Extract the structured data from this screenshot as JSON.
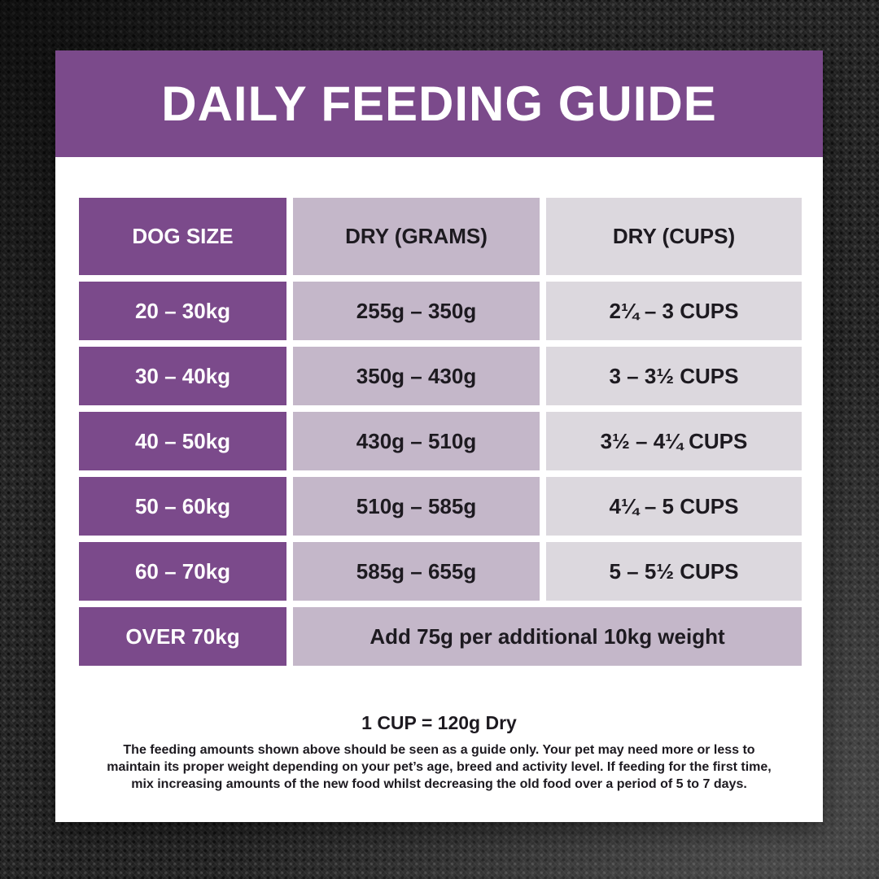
{
  "colors": {
    "purple": "#7b4a8b",
    "lavender_mid": "#c4b7c9",
    "lavender_light": "#dcd8de",
    "text_dark": "#1d1a20"
  },
  "header": {
    "title": "DAILY FEEDING GUIDE"
  },
  "table": {
    "columns": [
      "DOG SIZE",
      "DRY (GRAMS)",
      "DRY (CUPS)"
    ],
    "rows": [
      {
        "size": "20 – 30kg",
        "grams": "255g – 350g",
        "cups": "2¼ – 3 CUPS"
      },
      {
        "size": "30 – 40kg",
        "grams": "350g – 430g",
        "cups": "3 – 3½ CUPS"
      },
      {
        "size": "40 – 50kg",
        "grams": "430g – 510g",
        "cups": "3½ – 4¼ CUPS"
      },
      {
        "size": "50 – 60kg",
        "grams": "510g – 585g",
        "cups": "4¼ – 5 CUPS"
      },
      {
        "size": "60 – 70kg",
        "grams": "585g – 655g",
        "cups": "5 – 5½ CUPS"
      }
    ],
    "footer_row": {
      "size": "OVER 70kg",
      "note": "Add 75g per additional 10kg weight"
    }
  },
  "notes": {
    "cup_equivalence": "1 CUP = 120g Dry",
    "disclaimer_lines": [
      "The feeding amounts shown above should be seen as a guide only. Your pet may need more or less to",
      "maintain its proper weight depending on your pet’s age, breed and activity level. If feeding for the first time,",
      "mix increasing amounts of the new food whilst decreasing the old food over a period of 5 to 7 days."
    ]
  }
}
